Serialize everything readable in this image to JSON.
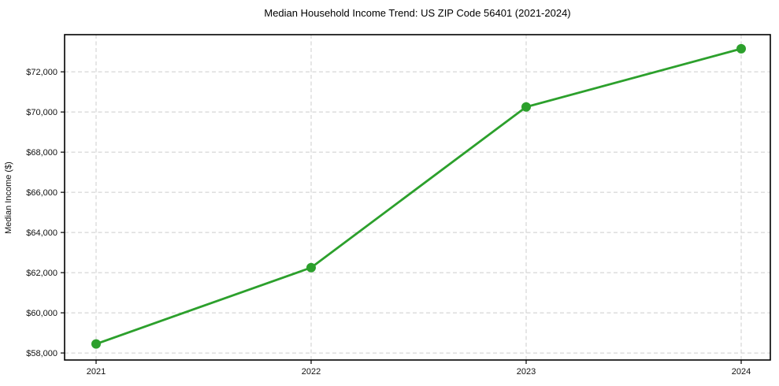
{
  "chart_data": {
    "type": "line",
    "title": "Median Household Income Trend: US ZIP Code 56401 (2021-2024)",
    "xlabel": "",
    "ylabel": "Median Income ($)",
    "categories": [
      "2021",
      "2022",
      "2023",
      "2024"
    ],
    "values": [
      58450,
      62250,
      70250,
      73150
    ],
    "ylim": [
      57650,
      73850
    ],
    "yticks": [
      58000,
      60000,
      62000,
      64000,
      66000,
      68000,
      70000,
      72000
    ],
    "ytick_labels": [
      "$58,000",
      "$60,000",
      "$62,000",
      "$64,000",
      "$66,000",
      "$68,000",
      "$70,000",
      "$72,000"
    ],
    "grid": true,
    "legend": "none",
    "colors": {
      "line": "#2ca02c",
      "marker": "#2ca02c",
      "grid": "#cccccc",
      "axis": "#000000",
      "text": "#111111"
    }
  }
}
